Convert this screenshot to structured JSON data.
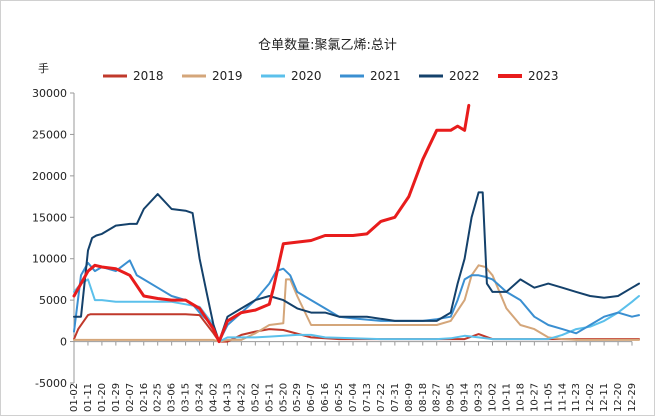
{
  "chart_data": {
    "type": "line",
    "title": "仓单数量:聚氯乙烯:总计",
    "unit": "手",
    "ylim": [
      -5000,
      30000
    ],
    "yticks": [
      -5000,
      0,
      5000,
      10000,
      15000,
      20000,
      25000,
      30000
    ],
    "xticks": [
      "01-02",
      "01-11",
      "01-20",
      "01-29",
      "02-07",
      "02-16",
      "02-25",
      "03-06",
      "03-15",
      "03-24",
      "04-02",
      "04-13",
      "04-22",
      "05-02",
      "05-11",
      "05-20",
      "05-29",
      "06-07",
      "06-16",
      "06-25",
      "07-04",
      "07-13",
      "07-22",
      "07-31",
      "08-09",
      "08-18",
      "08-27",
      "09-05",
      "09-14",
      "09-23",
      "10-02",
      "10-11",
      "10-18",
      "10-27",
      "11-05",
      "11-14",
      "11-23",
      "12-02",
      "12-11",
      "12-20",
      "12-29"
    ],
    "grid": false,
    "legend_position": "top",
    "series": [
      {
        "name": "2018",
        "color": "#c0392b",
        "width": 2,
        "x": [
          0,
          0.3,
          1,
          1.2,
          2,
          3,
          5,
          8,
          9,
          10,
          10.4,
          11,
          12,
          13,
          14,
          15,
          17,
          19,
          21,
          23,
          25,
          27,
          28,
          28.5,
          29,
          30,
          31,
          33,
          35,
          37,
          39,
          40.5
        ],
        "y": [
          300,
          1500,
          3200,
          3300,
          3300,
          3300,
          3300,
          3300,
          3200,
          1000,
          0,
          0,
          800,
          1200,
          1500,
          1400,
          500,
          300,
          300,
          300,
          300,
          300,
          300,
          600,
          900,
          300,
          300,
          300,
          300,
          300,
          300,
          300
        ]
      },
      {
        "name": "2019",
        "color": "#d4a67a",
        "width": 2,
        "x": [
          0,
          3,
          6,
          9,
          10,
          10.4,
          11,
          12,
          13,
          14,
          15,
          15.2,
          15.5,
          16,
          17,
          19,
          21,
          23,
          25,
          26,
          27,
          28,
          28.5,
          29,
          29.5,
          30,
          31,
          32,
          33,
          34,
          35,
          36,
          37,
          38,
          39,
          40.5
        ],
        "y": [
          200,
          200,
          200,
          200,
          200,
          0,
          200,
          200,
          1000,
          2000,
          2200,
          7500,
          7500,
          5500,
          2000,
          2000,
          2000,
          2000,
          2000,
          2000,
          2500,
          5000,
          8000,
          9200,
          9000,
          8000,
          4000,
          2000,
          1500,
          500,
          300,
          200,
          200,
          200,
          200,
          200
        ],
        "hidden_in_legend": false
      },
      {
        "name": "2020",
        "color": "#5bc0eb",
        "width": 2,
        "x": [
          0,
          0.5,
          1,
          1.5,
          2,
          3,
          4,
          5,
          7,
          8,
          9,
          10,
          10.4,
          11,
          12,
          13,
          14,
          15,
          16,
          17,
          18,
          20,
          22,
          24,
          26,
          27,
          28,
          29,
          30,
          31,
          32,
          33,
          34,
          35,
          36,
          37,
          38,
          39,
          40,
          40.5
        ],
        "y": [
          6000,
          7000,
          7500,
          5000,
          5000,
          4800,
          4800,
          4800,
          4800,
          4500,
          4200,
          2000,
          0,
          500,
          500,
          500,
          600,
          700,
          800,
          800,
          500,
          400,
          300,
          300,
          300,
          400,
          700,
          500,
          300,
          300,
          300,
          300,
          300,
          800,
          1500,
          1800,
          2500,
          3500,
          4800,
          5500
        ]
      },
      {
        "name": "2021",
        "color": "#3a8fd1",
        "width": 2,
        "x": [
          0,
          0.5,
          1,
          1.5,
          2,
          3,
          4,
          4.5,
          5,
          6,
          7,
          8,
          8.5,
          9,
          10,
          10.4,
          11,
          12,
          13,
          14,
          14.5,
          15,
          15.5,
          16,
          17,
          18,
          19,
          20,
          22,
          24,
          25,
          26,
          27,
          27.5,
          28,
          28.5,
          29,
          29.5,
          30,
          31,
          32,
          33,
          34,
          35,
          36,
          37,
          38,
          39,
          40,
          40.5
        ],
        "y": [
          1200,
          8000,
          9500,
          8500,
          9000,
          8500,
          9800,
          8000,
          7500,
          6500,
          5500,
          5000,
          4500,
          3500,
          1800,
          0,
          2000,
          3500,
          5000,
          7000,
          8500,
          8800,
          8000,
          6000,
          5000,
          4000,
          3000,
          2800,
          2500,
          2500,
          2500,
          2700,
          3000,
          5000,
          7500,
          8000,
          8000,
          7800,
          7500,
          6000,
          5000,
          3000,
          2000,
          1500,
          1000,
          2000,
          3000,
          3500,
          3000,
          3200
        ]
      },
      {
        "name": "2022",
        "color": "#14416b",
        "width": 2,
        "x": [
          0,
          0.5,
          1,
          1.3,
          1.6,
          2,
          3,
          4,
          4.5,
          5,
          6,
          7,
          8,
          8.5,
          9,
          9.5,
          10,
          10.4,
          11,
          12,
          13,
          14,
          15,
          16,
          17,
          18,
          19,
          21,
          23,
          25,
          26,
          27,
          27.5,
          28,
          28.5,
          29,
          29.3,
          29.6,
          30,
          31,
          32,
          33,
          34,
          35,
          36,
          37,
          38,
          39,
          40,
          40.5
        ],
        "y": [
          3000,
          3000,
          11000,
          12500,
          12800,
          13000,
          14000,
          14200,
          14200,
          16000,
          17800,
          16000,
          15800,
          15500,
          10000,
          6000,
          2000,
          0,
          3000,
          4000,
          5000,
          5500,
          5000,
          4000,
          3500,
          3500,
          3000,
          3000,
          2500,
          2500,
          2500,
          3500,
          7000,
          10000,
          15000,
          18000,
          18000,
          7000,
          6000,
          6000,
          7500,
          6500,
          7000,
          6500,
          6000,
          5500,
          5300,
          5500,
          6500,
          7000
        ]
      },
      {
        "name": "2023",
        "color": "#e81c1c",
        "width": 3,
        "x": [
          0,
          0.5,
          1,
          1.5,
          2,
          3,
          4,
          5,
          6,
          7,
          8,
          8.5,
          9,
          10,
          10.4,
          11,
          12,
          13,
          14,
          14.3,
          15,
          16,
          17,
          18,
          19,
          20,
          21,
          22,
          23,
          24,
          25,
          26,
          27,
          27.5,
          28,
          28.3
        ],
        "y": [
          5500,
          7000,
          8500,
          9200,
          9000,
          8800,
          8000,
          5500,
          5200,
          5000,
          5000,
          4500,
          4000,
          1500,
          0,
          2500,
          3500,
          3800,
          4500,
          6500,
          11800,
          12000,
          12200,
          12800,
          12800,
          12800,
          13000,
          14500,
          15000,
          17500,
          22000,
          25500,
          25500,
          26000,
          25500,
          28500
        ]
      }
    ]
  }
}
